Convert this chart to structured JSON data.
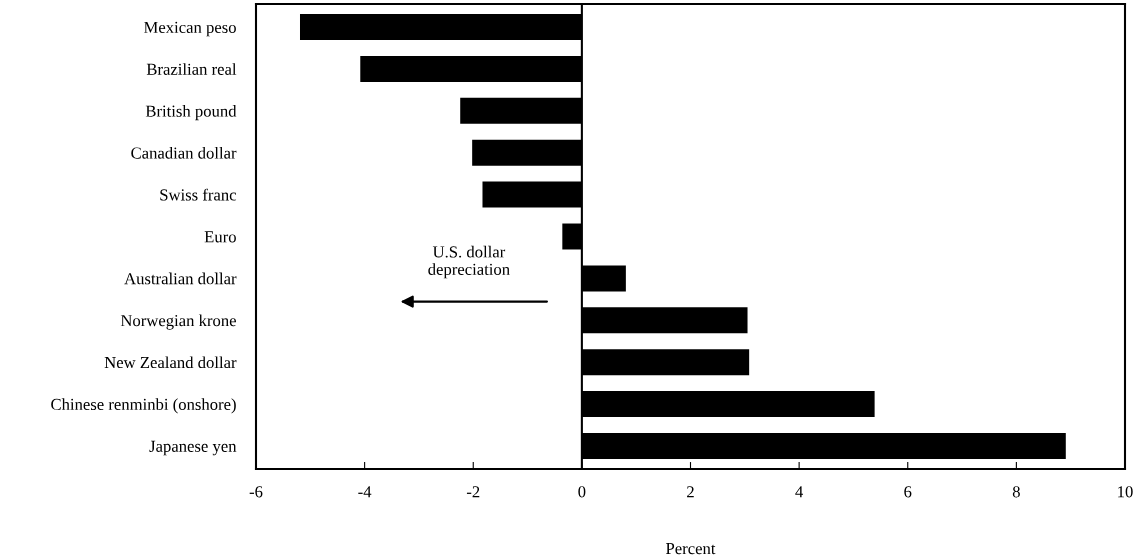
{
  "chart_data": {
    "type": "bar",
    "orientation": "horizontal",
    "xlabel": "Percent",
    "categories": [
      "Mexican peso",
      "Brazilian real",
      "British pound",
      "Canadian dollar",
      "Swiss franc",
      "Euro",
      "Australian dollar",
      "Norwegian krone",
      "New Zealand dollar",
      "Chinese renminbi (onshore)",
      "Japanese yen"
    ],
    "values": [
      -5.19,
      -4.08,
      -2.24,
      -2.02,
      -1.83,
      -0.36,
      0.81,
      3.05,
      3.08,
      5.39,
      8.91
    ],
    "color": "#000000",
    "xlim": [
      -6,
      10
    ],
    "xticks": [
      -6,
      -4,
      -2,
      0,
      2,
      4,
      6,
      8,
      10
    ],
    "grid": false,
    "ref_lines": [
      {
        "axis": "x",
        "value": 0,
        "color": "#000000"
      }
    ],
    "annotations": [
      "U.S. dollar\ndepreciation"
    ]
  }
}
